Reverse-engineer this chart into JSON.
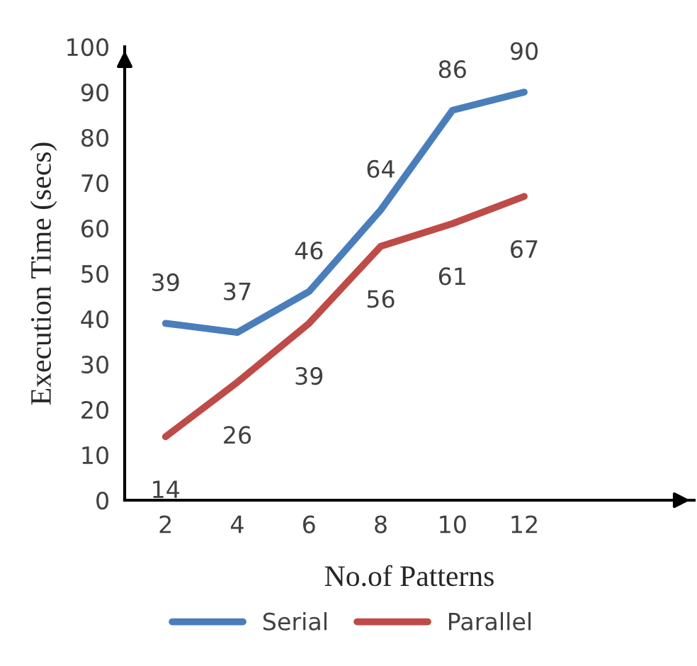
{
  "chart_data": {
    "type": "line",
    "xlabel": "No.of Patterns",
    "ylabel": "Execution Time (secs)",
    "categories": [
      "2",
      "4",
      "6",
      "8",
      "10",
      "12"
    ],
    "series": [
      {
        "name": "Serial",
        "color": "#4a7ebb",
        "values": [
          39,
          37,
          46,
          64,
          86,
          90
        ]
      },
      {
        "name": "Parallel",
        "color": "#be4b48",
        "values": [
          14,
          26,
          39,
          56,
          61,
          67
        ]
      }
    ],
    "ylim": [
      0,
      100
    ],
    "yticks": [
      0,
      10,
      20,
      30,
      40,
      50,
      60,
      70,
      80,
      90,
      100
    ],
    "data_labels": true,
    "grid": false,
    "legend": "bottom",
    "marker": "none",
    "line_style": "solid"
  }
}
